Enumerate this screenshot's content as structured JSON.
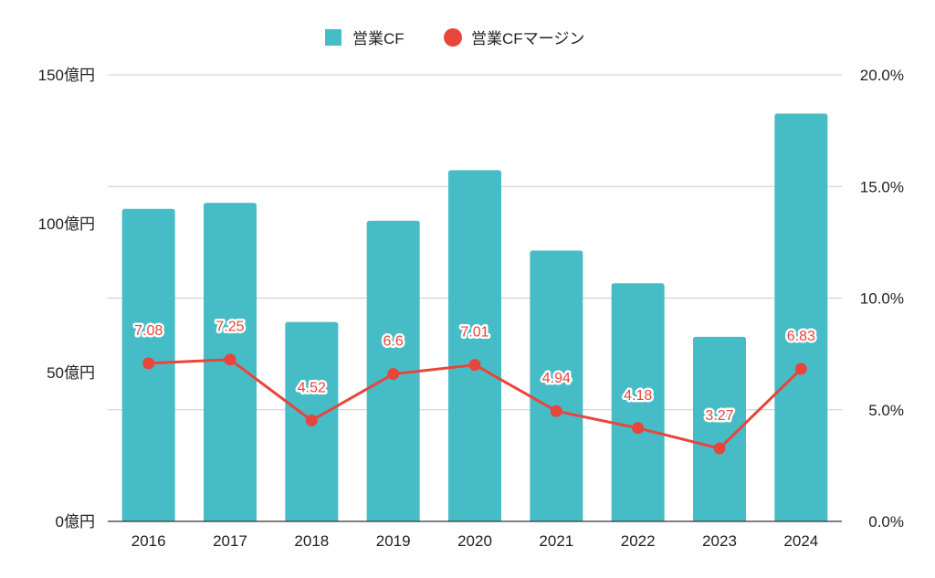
{
  "chart_data": {
    "type": "bar",
    "categories": [
      "2016",
      "2017",
      "2018",
      "2019",
      "2020",
      "2021",
      "2022",
      "2023",
      "2024"
    ],
    "series": [
      {
        "name": "営業CF",
        "chart_kind": "bar",
        "axis": "left",
        "color": "#46bdc6",
        "values": [
          105,
          107,
          67,
          101,
          118,
          91,
          80,
          62,
          137
        ]
      },
      {
        "name": "営業CFマージン",
        "chart_kind": "line",
        "axis": "right",
        "color": "#e8453c",
        "values": [
          7.08,
          7.25,
          4.52,
          6.6,
          7.01,
          4.94,
          4.18,
          3.27,
          6.83
        ],
        "data_labels": [
          "7.08",
          "7.25",
          "4.52",
          "6.6",
          "7.01",
          "4.94",
          "4.18",
          "3.27",
          "6.83"
        ]
      }
    ],
    "y_left": {
      "ylim": [
        0,
        150
      ],
      "ticks": [
        0,
        50,
        100,
        150
      ],
      "tick_labels": [
        "0億円",
        "50億円",
        "100億円",
        "150億円"
      ]
    },
    "y_right": {
      "ylim": [
        0,
        20
      ],
      "ticks": [
        0,
        5,
        10,
        15,
        20
      ],
      "tick_labels": [
        "0.0%",
        "5.0%",
        "10.0%",
        "15.0%",
        "20.0%"
      ]
    },
    "title": "",
    "xlabel": "",
    "ylabel": "",
    "grid": true,
    "legend_position": "top-center"
  }
}
